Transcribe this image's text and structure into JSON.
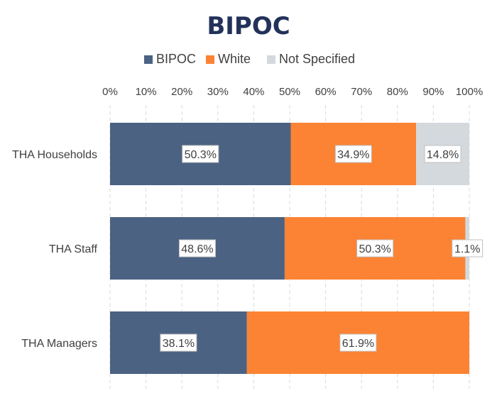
{
  "colors": {
    "BIPOC": "#4b6283",
    "White": "#fb8333",
    "Not Specified": "#d4d9de"
  },
  "chart_data": {
    "type": "bar",
    "orientation": "horizontal",
    "stacked": true,
    "title": "BIPOC",
    "categories": [
      "THA Households",
      "THA Staff",
      "THA Managers"
    ],
    "series": [
      {
        "name": "BIPOC",
        "values": [
          50.3,
          48.6,
          38.1
        ]
      },
      {
        "name": "White",
        "values": [
          34.9,
          50.3,
          61.9
        ]
      },
      {
        "name": "Not Specified",
        "values": [
          14.8,
          1.1,
          0
        ]
      }
    ],
    "data_labels": [
      [
        "50.3%",
        "34.9%",
        "14.8%"
      ],
      [
        "48.6%",
        "50.3%",
        "1.1%"
      ],
      [
        "38.1%",
        "61.9%",
        ""
      ]
    ],
    "x_ticks": [
      "0%",
      "10%",
      "20%",
      "30%",
      "40%",
      "50%",
      "60%",
      "70%",
      "80%",
      "90%",
      "100%"
    ],
    "xlim": [
      0,
      100
    ],
    "legend": [
      "BIPOC",
      "White",
      "Not Specified"
    ],
    "legend_position": "top",
    "grid": "vertical dashed"
  }
}
